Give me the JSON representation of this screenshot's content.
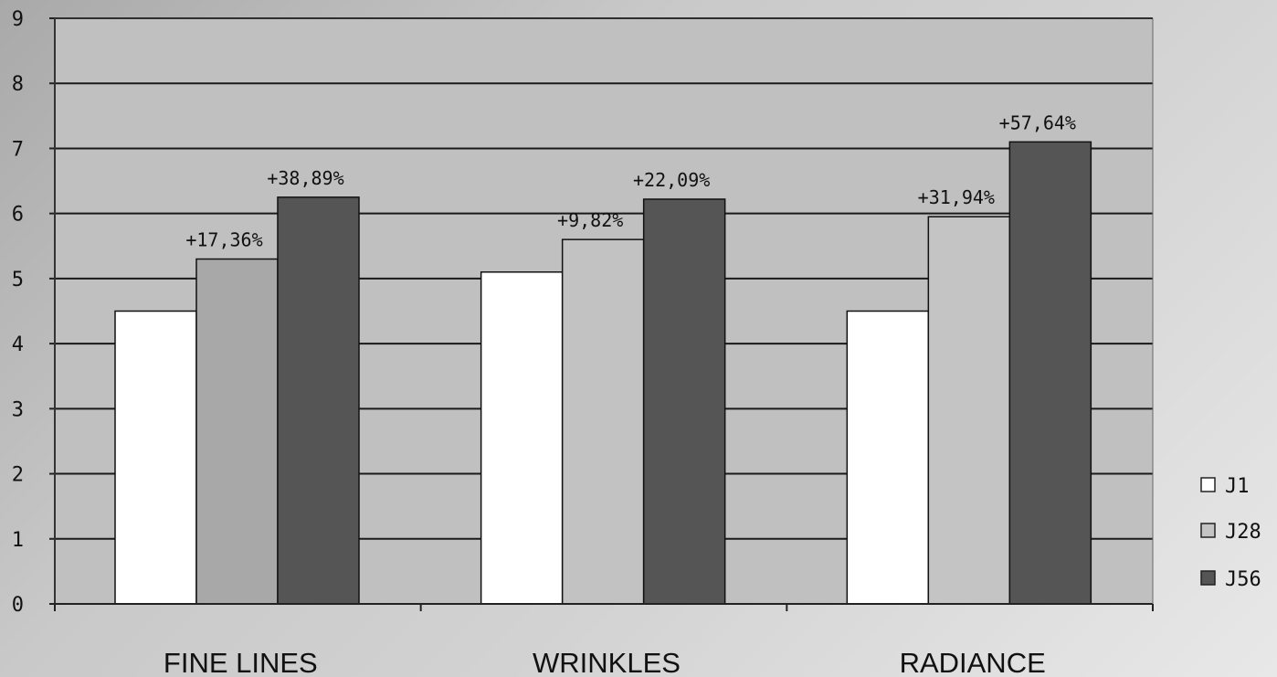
{
  "chart_data": {
    "type": "bar",
    "categories": [
      "FINE LINES",
      "WRINKLES",
      "RADIANCE"
    ],
    "series": [
      {
        "name": "J1",
        "values": [
          4.5,
          5.1,
          4.5
        ],
        "color": "#ffffff",
        "labels": [
          "",
          "",
          ""
        ]
      },
      {
        "name": "J28",
        "values": [
          5.3,
          5.6,
          5.95
        ],
        "color": "#a8a8a8",
        "labels": [
          "+17,36%",
          "+9,82%",
          "+31,94%"
        ]
      },
      {
        "name": "J56",
        "values": [
          6.25,
          6.22,
          7.1
        ],
        "color": "#555555",
        "labels": [
          "+38,89%",
          "+22,09%",
          "+57,64%"
        ]
      }
    ],
    "series_colors_by_category": [
      [
        "#ffffff",
        "#a8a8a8",
        "#555555"
      ],
      [
        "#ffffff",
        "#c2c2c2",
        "#555555"
      ],
      [
        "#ffffff",
        "#c4c4c4",
        "#555555"
      ]
    ],
    "ylim": [
      0,
      9
    ],
    "yticks": [
      0,
      1,
      2,
      3,
      4,
      5,
      6,
      7,
      8,
      9
    ],
    "grid": true,
    "legend_position": "right",
    "plot_background": "#c0c0c0",
    "title": "",
    "xlabel": "",
    "ylabel": ""
  }
}
